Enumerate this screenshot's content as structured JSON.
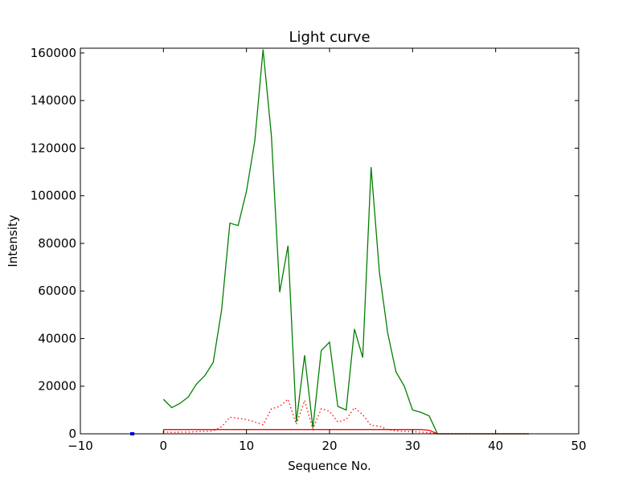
{
  "chart_data": {
    "type": "line",
    "title": "Light curve",
    "xlabel": "Sequence No.",
    "ylabel": "Intensity",
    "xlim": [
      -10,
      50
    ],
    "ylim": [
      0,
      162000
    ],
    "grid": false,
    "legend": "none",
    "xticks": [
      -10,
      0,
      10,
      20,
      30,
      40,
      50
    ],
    "xtick_labels": [
      "−10",
      "0",
      "10",
      "20",
      "30",
      "40",
      "50"
    ],
    "yticks": [
      0,
      20000,
      40000,
      60000,
      80000,
      100000,
      120000,
      140000,
      160000
    ],
    "ytick_labels": [
      "0",
      "20000",
      "40000",
      "60000",
      "80000",
      "100000",
      "120000",
      "140000",
      "160000"
    ],
    "series": [
      {
        "color": "#008000",
        "style": "solid",
        "x": [
          0,
          1,
          2,
          3,
          4,
          5,
          6,
          7,
          8,
          9,
          10,
          11,
          12,
          13,
          14,
          15,
          16,
          17,
          18,
          19,
          20,
          21,
          22,
          23,
          24,
          25,
          26,
          27,
          28,
          29,
          30,
          31,
          32,
          33,
          34,
          35,
          36,
          37,
          38,
          39,
          40,
          41,
          42,
          43,
          44
        ],
        "values": [
          14500,
          11000,
          12800,
          15500,
          21000,
          24500,
          30000,
          52000,
          88500,
          87500,
          102000,
          123000,
          161500,
          125000,
          59500,
          79000,
          5000,
          33000,
          2500,
          35000,
          38500,
          11500,
          10000,
          44000,
          32000,
          112000,
          68000,
          42500,
          26000,
          20000,
          10000,
          9000,
          7500,
          0,
          0,
          0,
          0,
          0,
          0,
          0,
          0,
          0,
          0,
          0,
          0
        ]
      },
      {
        "color": "#ff0000",
        "style": "dotted",
        "x": [
          0,
          1,
          2,
          3,
          4,
          5,
          6,
          7,
          8,
          9,
          10,
          11,
          12,
          13,
          14,
          15,
          16,
          17,
          18,
          19,
          20,
          21,
          22,
          23,
          24,
          25,
          26,
          27,
          28,
          29,
          30,
          31,
          32,
          33,
          34,
          35,
          36,
          37,
          38,
          39,
          40,
          41,
          42,
          43,
          44
        ],
        "values": [
          800,
          600,
          700,
          700,
          900,
          1000,
          1200,
          3000,
          7000,
          6500,
          6000,
          5000,
          3800,
          10500,
          11500,
          14500,
          4000,
          14000,
          2000,
          10500,
          9500,
          5000,
          6000,
          11000,
          8000,
          3500,
          3200,
          1800,
          1200,
          1000,
          900,
          700,
          500,
          0,
          0,
          0,
          0,
          0,
          0,
          0,
          0,
          0,
          0,
          0,
          0
        ]
      },
      {
        "color": "#ff0000",
        "style": "solid",
        "x": [
          0,
          1,
          2,
          3,
          4,
          5,
          6,
          7,
          8,
          9,
          10,
          11,
          12,
          13,
          14,
          15,
          16,
          17,
          18,
          19,
          20,
          21,
          22,
          23,
          24,
          25,
          26,
          27,
          28,
          29,
          30,
          31,
          32,
          33,
          34,
          35,
          36,
          37,
          38,
          39,
          40,
          41,
          42,
          43,
          44
        ],
        "values": [
          1800,
          1800,
          1800,
          1800,
          1800,
          1800,
          1800,
          1800,
          1800,
          1800,
          1800,
          1800,
          1800,
          1800,
          1800,
          1800,
          1800,
          1800,
          1800,
          1800,
          1800,
          1800,
          1800,
          1800,
          1800,
          1800,
          1800,
          1800,
          1800,
          1800,
          1800,
          1800,
          1500,
          0,
          0,
          0,
          0,
          0,
          0,
          0,
          0,
          0,
          0,
          0,
          0
        ]
      },
      {
        "color": "#0000ff",
        "style": "solid-thick",
        "x": [
          -4,
          -3.5
        ],
        "values": [
          0,
          0
        ]
      }
    ]
  }
}
